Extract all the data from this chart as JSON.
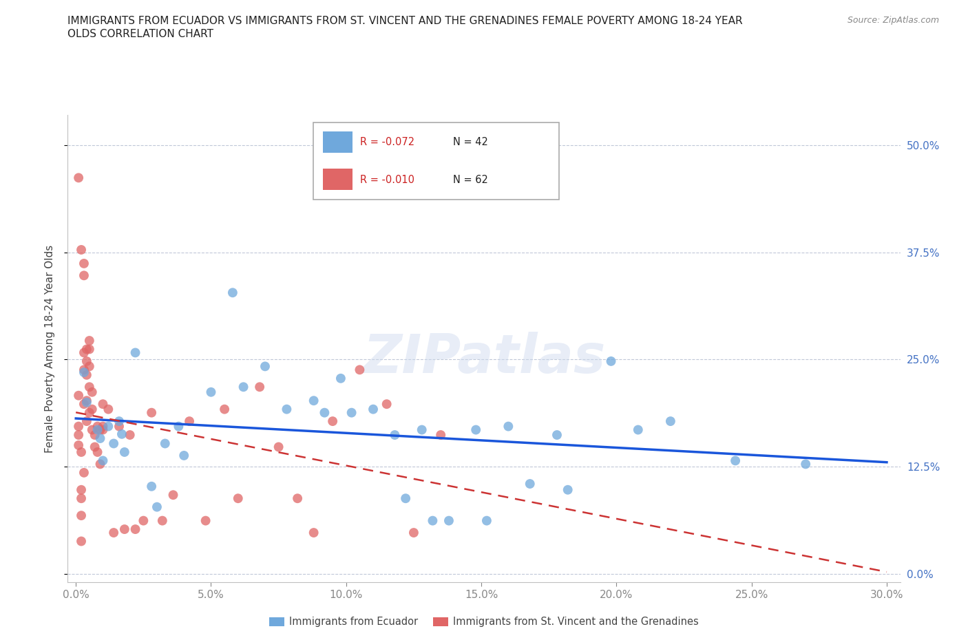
{
  "title_line1": "IMMIGRANTS FROM ECUADOR VS IMMIGRANTS FROM ST. VINCENT AND THE GRENADINES FEMALE POVERTY AMONG 18-24 YEAR",
  "title_line2": "OLDS CORRELATION CHART",
  "source": "Source: ZipAtlas.com",
  "ylabel": "Female Poverty Among 18-24 Year Olds",
  "xtick_labels": [
    "0.0%",
    "5.0%",
    "10.0%",
    "15.0%",
    "20.0%",
    "25.0%",
    "30.0%"
  ],
  "xtick_vals": [
    0.0,
    0.05,
    0.1,
    0.15,
    0.2,
    0.25,
    0.3
  ],
  "ytick_labels": [
    "0.0%",
    "12.5%",
    "25.0%",
    "37.5%",
    "50.0%"
  ],
  "ytick_vals": [
    0.0,
    0.125,
    0.25,
    0.375,
    0.5
  ],
  "xlim": [
    -0.003,
    0.305
  ],
  "ylim": [
    -0.01,
    0.535
  ],
  "ecuador_color": "#6fa8dc",
  "svg_color": "#e06666",
  "ecuador_R": "-0.072",
  "ecuador_N": "42",
  "svg_R": "-0.010",
  "svg_N": "62",
  "watermark": "ZIPatlas",
  "ecuador_x": [
    0.003,
    0.004,
    0.008,
    0.009,
    0.01,
    0.012,
    0.014,
    0.016,
    0.017,
    0.018,
    0.022,
    0.028,
    0.03,
    0.033,
    0.038,
    0.04,
    0.05,
    0.058,
    0.062,
    0.07,
    0.078,
    0.088,
    0.092,
    0.098,
    0.102,
    0.11,
    0.118,
    0.122,
    0.128,
    0.132,
    0.138,
    0.148,
    0.152,
    0.16,
    0.168,
    0.178,
    0.182,
    0.198,
    0.208,
    0.22,
    0.244,
    0.27
  ],
  "ecuador_y": [
    0.235,
    0.2,
    0.168,
    0.158,
    0.132,
    0.172,
    0.152,
    0.178,
    0.163,
    0.142,
    0.258,
    0.102,
    0.078,
    0.152,
    0.172,
    0.138,
    0.212,
    0.328,
    0.218,
    0.242,
    0.192,
    0.202,
    0.188,
    0.228,
    0.188,
    0.192,
    0.162,
    0.088,
    0.168,
    0.062,
    0.062,
    0.168,
    0.062,
    0.172,
    0.105,
    0.162,
    0.098,
    0.248,
    0.168,
    0.178,
    0.132,
    0.128
  ],
  "svg_x": [
    0.001,
    0.001,
    0.001,
    0.001,
    0.001,
    0.002,
    0.002,
    0.002,
    0.002,
    0.002,
    0.002,
    0.003,
    0.003,
    0.003,
    0.003,
    0.003,
    0.003,
    0.004,
    0.004,
    0.004,
    0.004,
    0.004,
    0.005,
    0.005,
    0.005,
    0.005,
    0.005,
    0.006,
    0.006,
    0.006,
    0.007,
    0.007,
    0.008,
    0.008,
    0.009,
    0.009,
    0.01,
    0.01,
    0.01,
    0.012,
    0.014,
    0.016,
    0.018,
    0.02,
    0.022,
    0.025,
    0.028,
    0.032,
    0.036,
    0.042,
    0.048,
    0.055,
    0.06,
    0.068,
    0.075,
    0.082,
    0.088,
    0.095,
    0.105,
    0.115,
    0.125,
    0.135
  ],
  "svg_y": [
    0.462,
    0.208,
    0.172,
    0.162,
    0.15,
    0.142,
    0.098,
    0.088,
    0.068,
    0.038,
    0.378,
    0.362,
    0.348,
    0.258,
    0.238,
    0.198,
    0.118,
    0.262,
    0.248,
    0.232,
    0.202,
    0.178,
    0.272,
    0.262,
    0.242,
    0.218,
    0.188,
    0.212,
    0.192,
    0.168,
    0.162,
    0.148,
    0.172,
    0.142,
    0.168,
    0.128,
    0.172,
    0.198,
    0.168,
    0.192,
    0.048,
    0.172,
    0.052,
    0.162,
    0.052,
    0.062,
    0.188,
    0.062,
    0.092,
    0.178,
    0.062,
    0.192,
    0.088,
    0.218,
    0.148,
    0.088,
    0.048,
    0.178,
    0.238,
    0.198,
    0.048,
    0.162
  ]
}
